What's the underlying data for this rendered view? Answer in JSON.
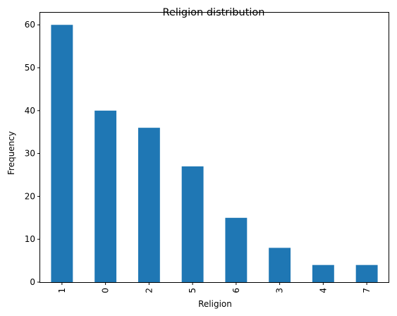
{
  "chart_data": {
    "type": "bar",
    "title": "Religion distribution",
    "xlabel": "Religion",
    "ylabel": "Frequency",
    "categories": [
      "1",
      "0",
      "2",
      "5",
      "6",
      "3",
      "4",
      "7"
    ],
    "values": [
      60,
      40,
      36,
      27,
      15,
      8,
      4,
      4
    ],
    "ylim": [
      0,
      63
    ],
    "yticks": [
      0,
      10,
      20,
      30,
      40,
      50,
      60
    ],
    "ytick_labels": [
      "0",
      "10",
      "20",
      "30",
      "40",
      "50",
      "60"
    ],
    "bar_color": "#1f77b4",
    "grid": false,
    "legend": "none",
    "xtick_rotation": 90
  }
}
